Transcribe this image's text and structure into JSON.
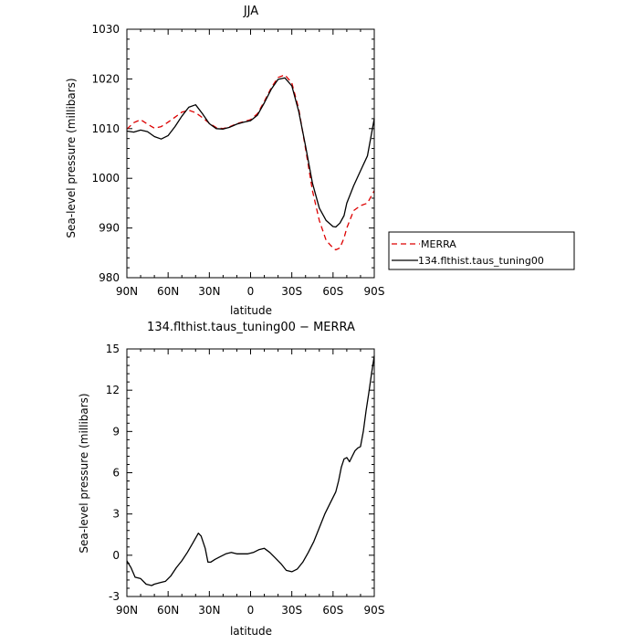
{
  "colors": {
    "merra": "#dd0000",
    "model": "#000000",
    "axis": "#000000",
    "background": "#ffffff"
  },
  "chart_data": [
    {
      "type": "line",
      "title": "JJA",
      "xlabel": "latitude",
      "ylabel": "Sea-level pressure (millibars)",
      "xlim": [
        90,
        -90
      ],
      "ylim": [
        980,
        1030
      ],
      "x_ticks": [
        "90N",
        "60N",
        "30N",
        "0",
        "30S",
        "60S",
        "90S"
      ],
      "y_ticks": [
        "980",
        "990",
        "1000",
        "1010",
        "1020",
        "1030"
      ],
      "grid": false,
      "legend_placement": "right, outside",
      "x": [
        90,
        85,
        80,
        75,
        70,
        65,
        60,
        55,
        50,
        45,
        40,
        35,
        30,
        25,
        20,
        15,
        10,
        5,
        0,
        -5,
        -10,
        -15,
        -20,
        -25,
        -30,
        -35,
        -40,
        -45,
        -50,
        -55,
        -60,
        -62,
        -65,
        -68,
        -70,
        -75,
        -80,
        -85,
        -90
      ],
      "series": [
        {
          "name": "MERRA",
          "style": "dashed",
          "color": "#dd0000",
          "values": [
            1009.9,
            1011.2,
            1011.8,
            1010.9,
            1010.1,
            1010.4,
            1011.3,
            1012.3,
            1013.3,
            1013.7,
            1013.2,
            1012.2,
            1011.1,
            1010.2,
            1010.0,
            1010.4,
            1011.0,
            1011.4,
            1011.8,
            1013.0,
            1015.5,
            1018.2,
            1020.3,
            1020.8,
            1019.2,
            1014.0,
            1006.0,
            997.5,
            991.5,
            987.5,
            986.0,
            985.6,
            986.0,
            988.0,
            990.0,
            993.5,
            994.5,
            995.0,
            997.5
          ]
        },
        {
          "name": "134.flthist.taus_tuning00",
          "style": "solid",
          "color": "#000000",
          "values": [
            1009.5,
            1009.3,
            1009.7,
            1009.4,
            1008.4,
            1007.9,
            1008.6,
            1010.4,
            1012.5,
            1014.3,
            1014.8,
            1013.0,
            1011.0,
            1010.0,
            1009.9,
            1010.3,
            1010.9,
            1011.3,
            1011.6,
            1012.7,
            1015.2,
            1017.9,
            1019.9,
            1020.2,
            1018.6,
            1013.5,
            1006.5,
            999.0,
            994.0,
            991.5,
            990.3,
            990.2,
            991.0,
            992.5,
            995.0,
            998.5,
            1001.5,
            1004.5,
            1012.0
          ]
        }
      ]
    },
    {
      "type": "line",
      "title": "134.flthist.taus_tuning00 − MERRA",
      "xlabel": "latitude",
      "ylabel": "Sea-level pressure (millibars)",
      "xlim": [
        90,
        -90
      ],
      "ylim": [
        -3,
        15
      ],
      "x_ticks": [
        "90N",
        "60N",
        "30N",
        "0",
        "30S",
        "60S",
        "90S"
      ],
      "y_ticks": [
        "-3",
        "0",
        "3",
        "6",
        "9",
        "12",
        "15"
      ],
      "grid": false,
      "x": [
        90,
        87,
        84,
        80,
        76,
        72,
        70,
        66,
        62,
        58,
        54,
        50,
        46,
        42,
        38,
        36,
        33,
        31,
        29,
        26,
        22,
        18,
        14,
        10,
        6,
        2,
        -2,
        -6,
        -10,
        -14,
        -18,
        -22,
        -26,
        -30,
        -34,
        -38,
        -42,
        -46,
        -50,
        -54,
        -58,
        -62,
        -64,
        -66,
        -68,
        -70,
        -72,
        -74,
        -76,
        -78,
        -80,
        -82,
        -84,
        -86,
        -88,
        -90
      ],
      "series": [
        {
          "name": "",
          "style": "solid",
          "color": "#000000",
          "values": [
            -0.4,
            -0.9,
            -1.6,
            -1.7,
            -2.1,
            -2.2,
            -2.1,
            -2.0,
            -1.9,
            -1.5,
            -0.9,
            -0.4,
            0.2,
            0.9,
            1.6,
            1.4,
            0.5,
            -0.5,
            -0.5,
            -0.3,
            -0.1,
            0.1,
            0.2,
            0.1,
            0.1,
            0.1,
            0.2,
            0.4,
            0.5,
            0.2,
            -0.2,
            -0.6,
            -1.1,
            -1.2,
            -1.0,
            -0.5,
            0.2,
            1.0,
            2.0,
            3.0,
            3.8,
            4.6,
            5.4,
            6.4,
            7.0,
            7.1,
            6.8,
            7.2,
            7.6,
            7.8,
            7.9,
            9.0,
            10.5,
            11.8,
            13.2,
            14.5
          ]
        }
      ]
    }
  ]
}
